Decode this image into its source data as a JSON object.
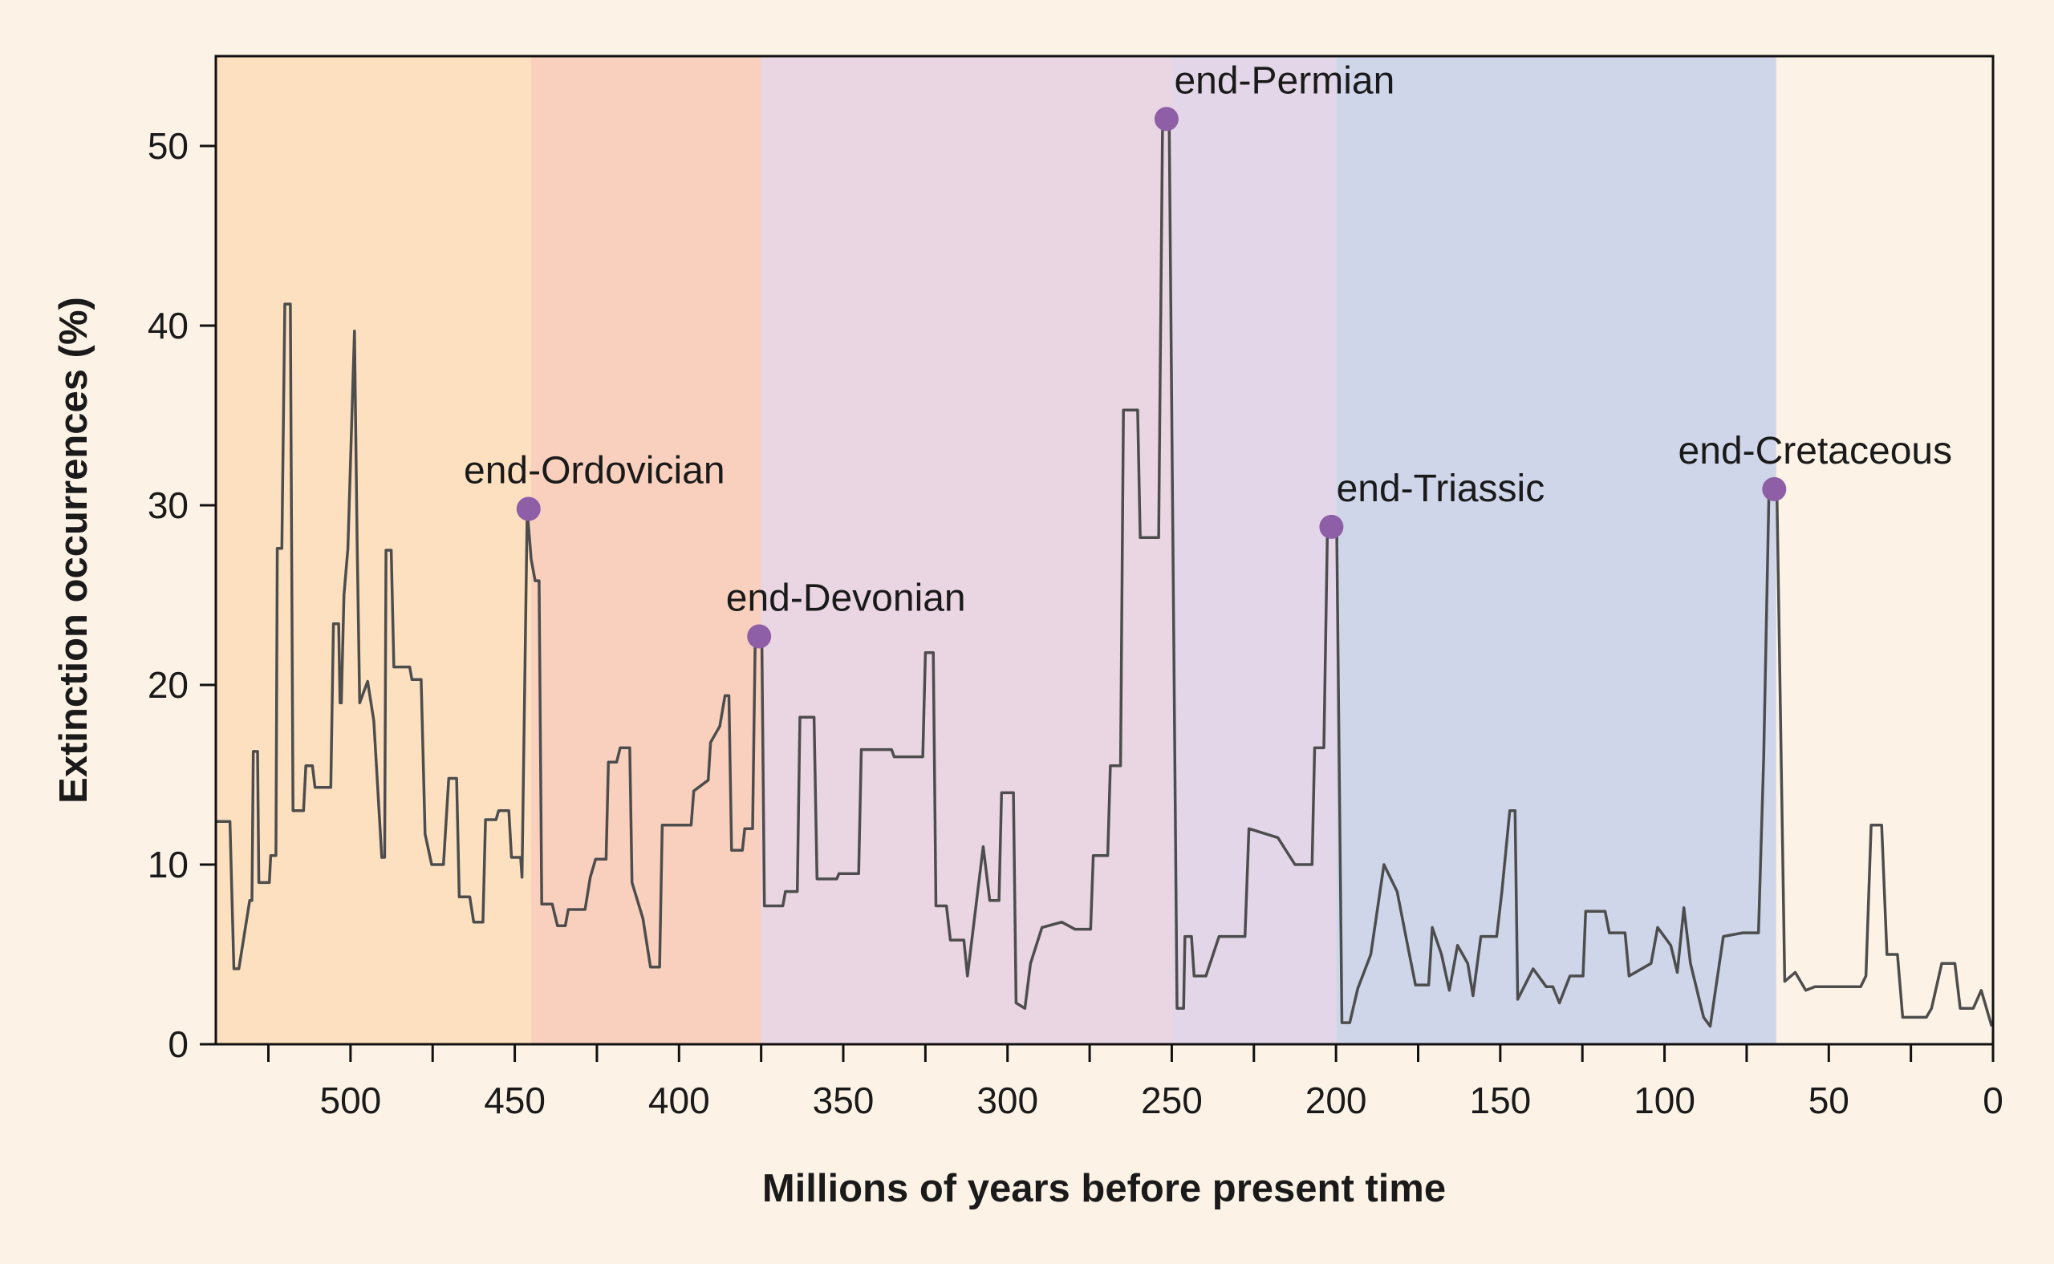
{
  "chart_data": {
    "type": "line",
    "xlabel": "Millions of years before present time",
    "ylabel": "Extinction occurrences (%)",
    "xlim": [
      541,
      0
    ],
    "ylim": [
      0,
      55
    ],
    "xticks": [
      500,
      450,
      400,
      350,
      300,
      250,
      200,
      150,
      100,
      50,
      0
    ],
    "xticks_minor": [
      525,
      475,
      425,
      375,
      325,
      275,
      225,
      175,
      125,
      75,
      25
    ],
    "yticks": [
      0,
      10,
      20,
      30,
      40,
      50
    ],
    "color": "#4d4d4d",
    "bands": [
      {
        "from": 541,
        "to": 445,
        "color": "#fde0c0"
      },
      {
        "from": 445,
        "to": 375,
        "color": "#f9d0bd"
      },
      {
        "from": 375,
        "to": 250,
        "color": "#ead5e2"
      },
      {
        "from": 250,
        "to": 200,
        "color": "#e3d6e8"
      },
      {
        "from": 200,
        "to": 66,
        "color": "#cfd6ea"
      }
    ],
    "x": [
      541,
      536.7,
      535.5,
      534,
      530.7,
      530,
      529.6,
      528.3,
      527.9,
      524.7,
      524.3,
      522.7,
      522.3,
      520.9,
      520,
      518.3,
      517.5,
      514.3,
      513.6,
      511.6,
      510.8,
      506,
      505.2,
      503.6,
      503.2,
      502.8,
      502,
      500.8,
      498.8,
      498,
      497.2,
      494.8,
      492.9,
      490.5,
      489.6,
      489.2,
      487.6,
      486.8,
      482,
      481.3,
      478.5,
      477.3,
      475.3,
      471.7,
      470.1,
      467.7,
      466.9,
      463.7,
      462.5,
      459.7,
      458.9,
      455.7,
      454.9,
      451.8,
      451,
      448.2,
      447.8,
      446.2,
      445,
      443.8,
      442.6,
      441.8,
      438.6,
      437,
      434.6,
      433.7,
      428.6,
      427,
      425.4,
      422.2,
      421.5,
      419,
      417.9,
      415,
      414.3,
      411,
      408.7,
      405.9,
      405.1,
      396.3,
      395.5,
      391.1,
      390.4,
      387.6,
      386,
      384.8,
      384,
      380.7,
      380,
      377.6,
      376.8,
      374.8,
      374,
      368.4,
      367.6,
      364,
      363.2,
      358.9,
      358,
      352,
      351.3,
      345.3,
      344.5,
      335.3,
      334.5,
      325.8,
      325,
      322.6,
      321.8,
      318.6,
      317.4,
      313.3,
      312.2,
      309.4,
      307.4,
      305.4,
      302.6,
      301.8,
      298.2,
      297.4,
      294.7,
      293,
      289.5,
      283.5,
      279.5,
      274.7,
      273.9,
      269.5,
      268.7,
      265.6,
      264.7,
      260.4,
      259.6,
      254,
      252.8,
      250.8,
      248.4,
      246.4,
      246,
      244,
      243.2,
      239.6,
      235.6,
      227.7,
      226.5,
      217.7,
      212.5,
      207.3,
      206.5,
      203.7,
      202.6,
      199.8,
      198.2,
      195.8,
      193.4,
      189.4,
      185.4,
      181.4,
      178.2,
      175.8,
      171.8,
      170.7,
      167.9,
      165.5,
      163,
      159.9,
      158.3,
      155.9,
      151.1,
      149.5,
      147.1,
      145.5,
      144.7,
      140,
      136,
      134,
      132,
      128.8,
      124.8,
      124,
      118.1,
      116.8,
      112,
      110.8,
      104.1,
      102.1,
      98.1,
      96.1,
      94.1,
      92.1,
      88.1,
      86.1,
      82.1,
      76.2,
      71.4,
      69.8,
      68.2,
      65.8,
      63.4,
      60.2,
      57,
      54.2,
      40.3,
      38.7,
      37.1,
      33.9,
      32.3,
      29.1,
      27.5,
      20.3,
      18.7,
      15.6,
      11.6,
      10,
      6,
      3.6,
      0.4
    ],
    "values": [
      12.4,
      12.4,
      4.2,
      4.2,
      8,
      8,
      16.3,
      16.3,
      9,
      9,
      10.5,
      10.5,
      27.6,
      27.6,
      41.2,
      41.2,
      13,
      13,
      15.5,
      15.5,
      14.3,
      14.3,
      23.4,
      23.4,
      19,
      19,
      25,
      27.6,
      39.7,
      28,
      19,
      20.2,
      18,
      10.4,
      10.4,
      27.5,
      27.5,
      21,
      21,
      20.3,
      20.3,
      11.7,
      10,
      10,
      14.8,
      14.8,
      8.2,
      8.2,
      6.8,
      6.8,
      12.5,
      12.5,
      13,
      13,
      10.4,
      10.4,
      9.3,
      29.8,
      27,
      25.8,
      25.8,
      7.8,
      7.8,
      6.6,
      6.6,
      7.5,
      7.5,
      9.3,
      10.3,
      10.3,
      15.7,
      15.7,
      16.5,
      16.5,
      9,
      7,
      4.3,
      4.3,
      12.2,
      12.2,
      14.1,
      14.7,
      16.8,
      17.7,
      19.4,
      19.4,
      10.8,
      10.8,
      12,
      12,
      22.7,
      22.7,
      7.7,
      7.7,
      8.5,
      8.5,
      18.2,
      18.2,
      9.2,
      9.2,
      9.5,
      9.5,
      16.4,
      16.4,
      16,
      16,
      21.8,
      21.8,
      7.7,
      7.7,
      5.8,
      5.8,
      3.8,
      8,
      11,
      8,
      8,
      14,
      14,
      2.3,
      2,
      4.5,
      6.5,
      6.8,
      6.4,
      6.4,
      10.5,
      10.5,
      15.5,
      15.5,
      35.3,
      35.3,
      28.2,
      28.2,
      51.5,
      51.5,
      2,
      2,
      6,
      6,
      3.8,
      3.8,
      6,
      6,
      12,
      11.5,
      10,
      10,
      16.5,
      16.5,
      28.8,
      28.8,
      1.2,
      1.2,
      3.1,
      5,
      10,
      8.5,
      5.5,
      3.3,
      3.3,
      6.5,
      5,
      3,
      5.5,
      4.5,
      2.7,
      6,
      6,
      8.5,
      13,
      13,
      2.5,
      4.2,
      3.2,
      3.2,
      2.3,
      3.8,
      3.8,
      7.4,
      7.4,
      6.2,
      6.2,
      3.8,
      4.5,
      6.5,
      5.5,
      4,
      7.6,
      4.5,
      1.5,
      1,
      6,
      6.2,
      6.2,
      16,
      30.9,
      30.9,
      3.5,
      4,
      3,
      3.2,
      3.2,
      3.8,
      12.2,
      12.2,
      5,
      5,
      1.5,
      1.5,
      2,
      4.5,
      4.5,
      2,
      2,
      3,
      1
    ],
    "marker_color": "#8e5ea6",
    "annotations": [
      {
        "text": "end-Ordovician",
        "x": 445.8,
        "y": 29.8
      },
      {
        "text": "end-Devonian",
        "x": 375.6,
        "y": 22.7
      },
      {
        "text": "end-Permian",
        "x": 251.6,
        "y": 51.5
      },
      {
        "text": "end-Triassic",
        "x": 201.4,
        "y": 28.8
      },
      {
        "text": "end-Cretaceous",
        "x": 66.6,
        "y": 30.9
      }
    ]
  }
}
